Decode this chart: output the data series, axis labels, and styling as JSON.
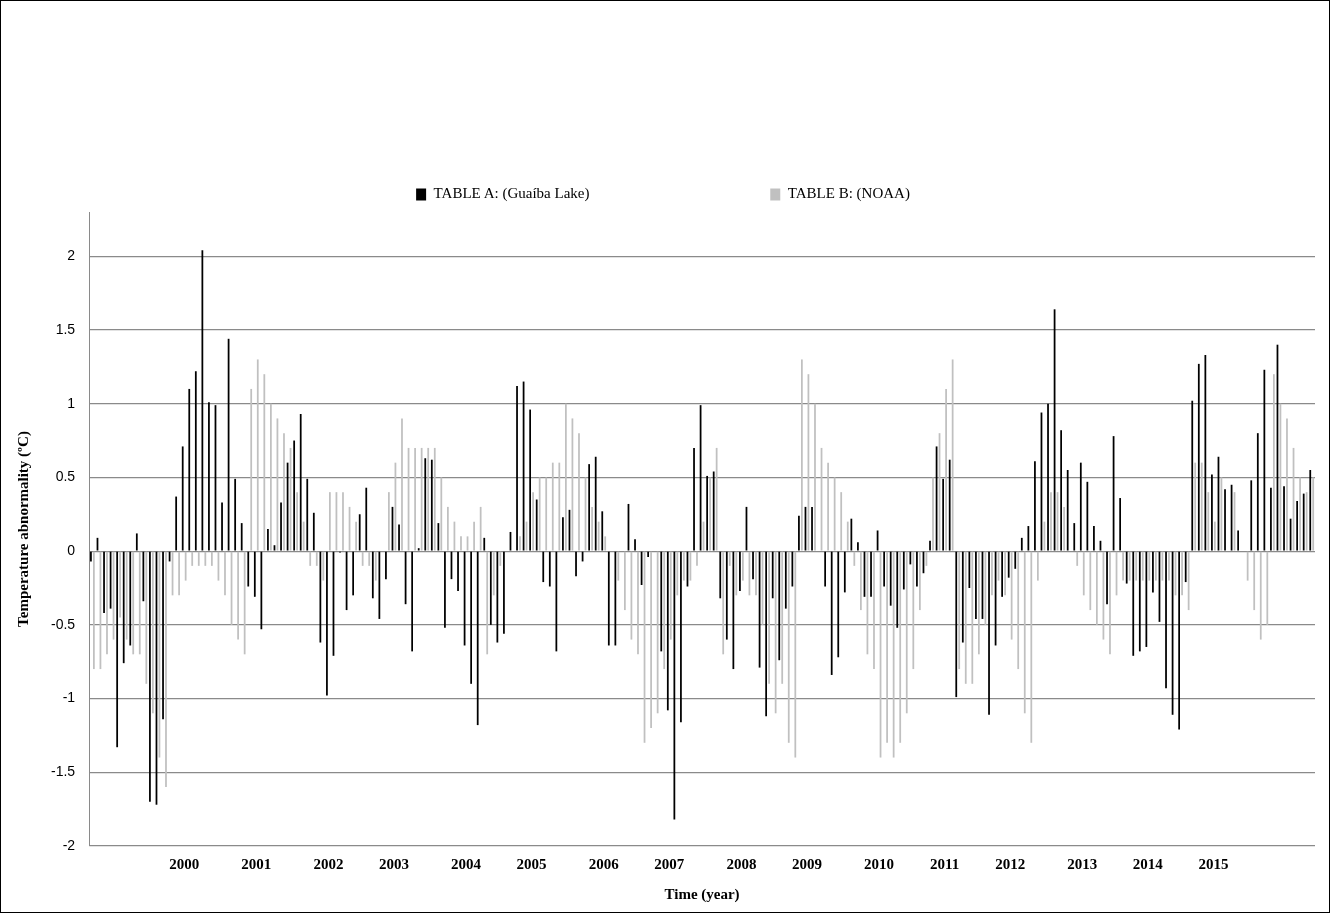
{
  "chart_data": {
    "type": "bar",
    "xlabel": "Time (year)",
    "ylabel": "Temperature abnormality (ºC)",
    "categories": [
      null,
      null,
      null,
      null,
      null,
      null,
      null,
      null,
      null,
      null,
      null,
      null,
      null,
      null,
      "2000",
      null,
      null,
      null,
      null,
      null,
      null,
      null,
      null,
      null,
      null,
      "2001",
      null,
      null,
      null,
      null,
      null,
      null,
      null,
      null,
      null,
      null,
      "2002",
      null,
      null,
      null,
      null,
      null,
      null,
      null,
      null,
      null,
      "2003",
      null,
      null,
      null,
      null,
      null,
      null,
      null,
      null,
      null,
      null,
      "2004",
      null,
      null,
      null,
      null,
      null,
      null,
      null,
      null,
      null,
      "2005",
      null,
      null,
      null,
      null,
      null,
      null,
      null,
      null,
      null,
      null,
      "2006",
      null,
      null,
      null,
      null,
      null,
      null,
      null,
      null,
      null,
      "2007",
      null,
      null,
      null,
      null,
      null,
      null,
      null,
      null,
      null,
      null,
      "2008",
      null,
      null,
      null,
      null,
      null,
      null,
      null,
      null,
      null,
      "2009",
      null,
      null,
      null,
      null,
      null,
      null,
      null,
      null,
      null,
      null,
      "2010",
      null,
      null,
      null,
      null,
      null,
      null,
      null,
      null,
      null,
      "2011",
      null,
      null,
      null,
      null,
      null,
      null,
      null,
      null,
      null,
      "2012",
      null,
      null,
      null,
      null,
      null,
      null,
      null,
      null,
      null,
      null,
      "2013",
      null,
      null,
      null,
      null,
      null,
      null,
      null,
      null,
      null,
      "2014",
      null,
      null,
      null,
      null,
      null,
      null,
      null,
      null,
      null,
      "2015",
      null,
      null,
      null,
      null,
      null,
      null,
      null,
      null,
      null,
      null,
      null,
      null,
      null,
      null,
      null
    ],
    "series": [
      {
        "name": "TABLE A: (Guaíba Lake)",
        "color": "#000000",
        "values": [
          -0.07,
          0.09,
          -0.42,
          -0.39,
          -1.33,
          -0.76,
          -0.64,
          0.12,
          -0.34,
          -1.7,
          -1.72,
          -1.14,
          -0.07,
          0.37,
          0.71,
          1.1,
          1.22,
          2.04,
          1.01,
          0.99,
          0.33,
          1.44,
          0.49,
          0.19,
          -0.24,
          -0.31,
          -0.53,
          0.15,
          0.04,
          0.33,
          0.6,
          0.75,
          0.93,
          0.49,
          0.26,
          -0.62,
          -0.98,
          -0.71,
          -0.01,
          -0.4,
          -0.3,
          0.25,
          0.43,
          -0.32,
          -0.46,
          -0.19,
          0.3,
          0.18,
          -0.36,
          -0.68,
          0.02,
          0.63,
          0.62,
          0.19,
          -0.52,
          -0.19,
          -0.27,
          -0.64,
          -0.9,
          -1.18,
          0.09,
          -0.5,
          -0.62,
          -0.56,
          0.13,
          1.12,
          1.15,
          0.96,
          0.35,
          -0.21,
          -0.24,
          -0.68,
          0.23,
          0.28,
          -0.17,
          -0.07,
          0.59,
          0.64,
          0.27,
          -0.64,
          -0.64,
          0,
          0.32,
          0.08,
          -0.23,
          -0.04,
          0,
          -0.68,
          -1.08,
          -1.82,
          -1.16,
          -0.24,
          0.7,
          0.99,
          0.51,
          0.54,
          -0.32,
          -0.6,
          -0.8,
          -0.27,
          0.3,
          -0.19,
          -0.79,
          -1.12,
          -0.32,
          -0.74,
          -0.39,
          -0.24,
          0.24,
          0.3,
          0.3,
          0,
          -0.24,
          -0.84,
          -0.72,
          -0.28,
          0.22,
          0.06,
          -0.31,
          -0.31,
          0.14,
          -0.24,
          -0.37,
          -0.52,
          -0.26,
          -0.09,
          -0.24,
          -0.15,
          0.07,
          0.71,
          0.49,
          0.62,
          -0.99,
          -0.62,
          -0.25,
          -0.46,
          -0.46,
          -1.11,
          -0.64,
          -0.31,
          -0.18,
          -0.12,
          0.09,
          0.17,
          0.61,
          0.94,
          1.0,
          1.64,
          0.82,
          0.55,
          0.19,
          0.6,
          0.47,
          0.17,
          0.07,
          -0.36,
          0.78,
          0.36,
          -0.22,
          -0.71,
          -0.68,
          -0.65,
          -0.28,
          -0.48,
          -0.93,
          -1.11,
          -1.21,
          -0.21,
          1.02,
          1.27,
          1.33,
          0.52,
          0.64,
          0.42,
          0.45,
          0.14,
          0,
          0.48,
          0.8,
          1.23,
          0.43,
          1.4,
          0.44,
          0.22,
          0.34,
          0.39,
          0.55
        ]
      },
      {
        "name": "TABLE B: (NOAA)",
        "color": "#c0c0c0",
        "values": [
          -0.8,
          -0.8,
          -0.7,
          -0.6,
          -0.45,
          -0.6,
          -0.7,
          -0.7,
          -0.9,
          -1.1,
          -1.4,
          -1.6,
          -0.3,
          -0.3,
          -0.2,
          -0.1,
          -0.1,
          -0.1,
          -0.1,
          -0.2,
          -0.3,
          -0.5,
          -0.6,
          -0.7,
          1.1,
          1.3,
          1.2,
          1.0,
          0.9,
          0.8,
          0.7,
          0.4,
          0.2,
          -0.1,
          -0.1,
          -0.2,
          0.4,
          0.4,
          0.4,
          0.3,
          0.2,
          -0.1,
          -0.1,
          -0.2,
          0,
          0.4,
          0.6,
          0.9,
          0.7,
          0.7,
          0.7,
          0.7,
          0.7,
          0.5,
          0.3,
          0.2,
          0.1,
          0.1,
          0.2,
          0.3,
          -0.7,
          -0.3,
          -0.1,
          0,
          0,
          0.1,
          0.2,
          0.4,
          0.5,
          0.5,
          0.6,
          0.6,
          1.0,
          0.9,
          0.8,
          0.5,
          0.3,
          0.2,
          0.1,
          0,
          -0.2,
          -0.4,
          -0.6,
          -0.7,
          -1.3,
          -1.2,
          -1.1,
          -0.8,
          -0.6,
          -0.3,
          -0.2,
          -0.2,
          -0.1,
          0.2,
          0.5,
          0.7,
          -0.7,
          -0.1,
          -0.3,
          -0.2,
          -0.3,
          -0.3,
          -0.5,
          -0.9,
          -1.1,
          -0.9,
          -1.3,
          -1.4,
          1.3,
          1.2,
          1.0,
          0.7,
          0.6,
          0.5,
          0.4,
          0.2,
          -0.1,
          -0.4,
          -0.7,
          -0.8,
          -1.4,
          -1.3,
          -1.4,
          -1.3,
          -1.1,
          -0.8,
          -0.4,
          -0.1,
          0.5,
          0.8,
          1.1,
          1.3,
          -0.8,
          -0.9,
          -0.9,
          -0.7,
          -0.5,
          -0.3,
          -0.2,
          -0.3,
          -0.6,
          -0.8,
          -1.1,
          -1.3,
          -0.2,
          0.2,
          0.4,
          0.4,
          0.3,
          0,
          -0.1,
          -0.3,
          -0.4,
          -0.5,
          -0.6,
          -0.7,
          -0.3,
          -0.2,
          -0.2,
          -0.2,
          -0.2,
          -0.2,
          -0.2,
          -0.2,
          -0.2,
          -0.3,
          -0.3,
          -0.4,
          0.6,
          0.6,
          0.4,
          0.2,
          0.5,
          0,
          0.4,
          0,
          -0.2,
          -0.4,
          -0.6,
          -0.5,
          1.2,
          1.0,
          0.9,
          0.7,
          0.5,
          0.4,
          0.5
        ]
      }
    ],
    "ylim": [
      -2,
      2.3
    ],
    "yticks": [
      -2,
      -1.5,
      -1,
      -0.5,
      0,
      0.5,
      1,
      1.5,
      2
    ],
    "grid": "y",
    "legend": "top"
  }
}
